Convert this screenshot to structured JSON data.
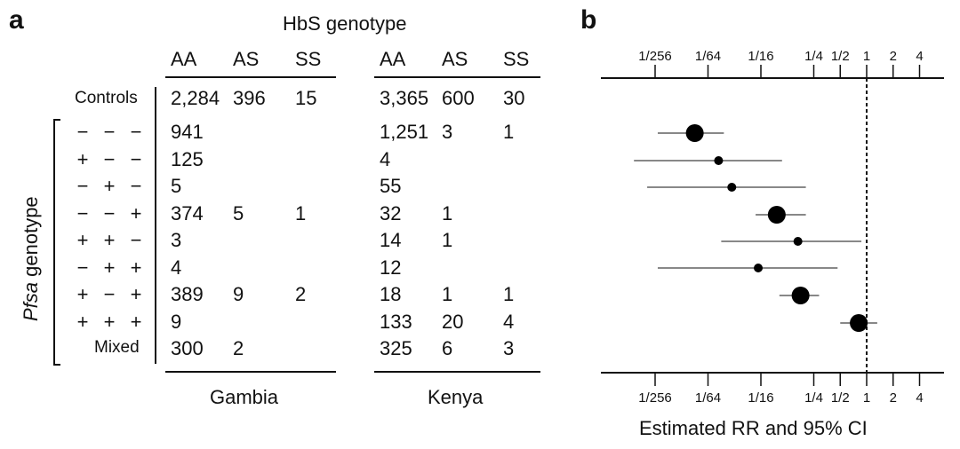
{
  "panel_a": {
    "letter": "a",
    "hbs_title": "HbS genotype",
    "pfsa_label_italic": "Pfsa",
    "pfsa_label_rest": " genotype",
    "genotype_cols": [
      "AA",
      "AS",
      "SS"
    ],
    "controls_label": "Controls",
    "mixed_label": "Mixed",
    "gambia_label": "Gambia",
    "kenya_label": "Kenya",
    "controls": {
      "gambia": [
        "2,284",
        "396",
        "15"
      ],
      "kenya": [
        "3,365",
        "600",
        "30"
      ]
    },
    "rows": [
      {
        "signs": [
          "−",
          "−",
          "−"
        ],
        "gambia": [
          "941",
          "",
          ""
        ],
        "kenya": [
          "1,251",
          "3",
          "1"
        ]
      },
      {
        "signs": [
          "+",
          "−",
          "−"
        ],
        "gambia": [
          "125",
          "",
          ""
        ],
        "kenya": [
          "4",
          "",
          ""
        ]
      },
      {
        "signs": [
          "−",
          "+",
          "−"
        ],
        "gambia": [
          "5",
          "",
          ""
        ],
        "kenya": [
          "55",
          "",
          ""
        ]
      },
      {
        "signs": [
          "−",
          "−",
          "+"
        ],
        "gambia": [
          "374",
          "5",
          "1"
        ],
        "kenya": [
          "32",
          "1",
          ""
        ]
      },
      {
        "signs": [
          "+",
          "+",
          "−"
        ],
        "gambia": [
          "3",
          "",
          ""
        ],
        "kenya": [
          "14",
          "1",
          ""
        ]
      },
      {
        "signs": [
          "−",
          "+",
          "+"
        ],
        "gambia": [
          "4",
          "",
          ""
        ],
        "kenya": [
          "12",
          "",
          ""
        ]
      },
      {
        "signs": [
          "+",
          "−",
          "+"
        ],
        "gambia": [
          "389",
          "9",
          "2"
        ],
        "kenya": [
          "18",
          "1",
          "1"
        ]
      },
      {
        "signs": [
          "+",
          "+",
          "+"
        ],
        "gambia": [
          "9",
          "",
          ""
        ],
        "kenya": [
          "133",
          "20",
          "4"
        ]
      },
      {
        "signs": [],
        "gambia": [
          "300",
          "2",
          ""
        ],
        "kenya": [
          "325",
          "6",
          "3"
        ]
      }
    ]
  },
  "chart_data": {
    "type": "scatter",
    "panel_letter": "b",
    "xlabel": "Estimated RR and 95% CI",
    "x_scale": "log2",
    "xlim_log2": [
      -9.5,
      3.0
    ],
    "ticks": [
      {
        "label": "1/256",
        "log2": -8
      },
      {
        "label": "1/64",
        "log2": -6
      },
      {
        "label": "1/16",
        "log2": -4
      },
      {
        "label": "1/4",
        "log2": -2
      },
      {
        "label": "1/2",
        "log2": -1
      },
      {
        "label": "1",
        "log2": 0
      },
      {
        "label": "2",
        "log2": 1
      },
      {
        "label": "4",
        "log2": 2
      }
    ],
    "reference_line_log2": 0,
    "points": [
      {
        "row": 1,
        "est_log2": -6.5,
        "lo_log2": -7.9,
        "hi_log2": -5.4,
        "size": "large"
      },
      {
        "row": 2,
        "est_log2": -5.6,
        "lo_log2": -8.8,
        "hi_log2": -3.2,
        "size": "small"
      },
      {
        "row": 3,
        "est_log2": -5.1,
        "lo_log2": -8.3,
        "hi_log2": -2.3,
        "size": "small"
      },
      {
        "row": 4,
        "est_log2": -3.4,
        "lo_log2": -4.2,
        "hi_log2": -2.3,
        "size": "large"
      },
      {
        "row": 5,
        "est_log2": -2.6,
        "lo_log2": -5.5,
        "hi_log2": -0.2,
        "size": "small"
      },
      {
        "row": 6,
        "est_log2": -4.1,
        "lo_log2": -7.9,
        "hi_log2": -1.1,
        "size": "small"
      },
      {
        "row": 7,
        "est_log2": -2.5,
        "lo_log2": -3.3,
        "hi_log2": -1.8,
        "size": "large"
      },
      {
        "row": 8,
        "est_log2": -0.3,
        "lo_log2": -1.0,
        "hi_log2": 0.4,
        "size": "large"
      }
    ]
  }
}
